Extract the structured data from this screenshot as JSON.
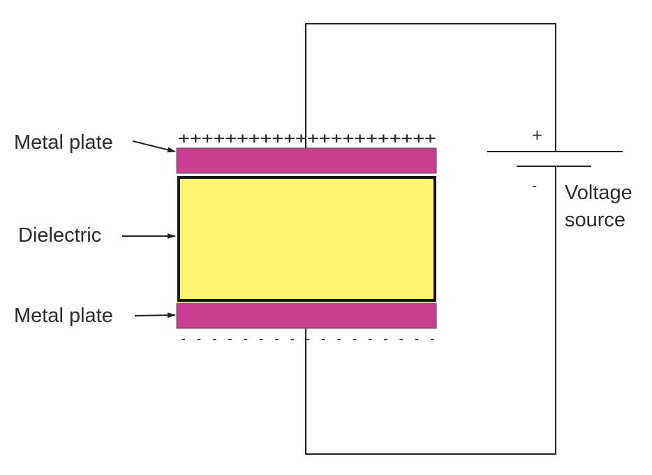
{
  "labels": {
    "top_plate": "Metal plate",
    "dielectric": "Dielectric",
    "bottom_plate": "Metal plate",
    "source_line1": "Voltage",
    "source_line2": "source"
  },
  "terminals": {
    "positive": "+",
    "negative": "-"
  },
  "charges": {
    "top": "++++++++++++++++++++++",
    "bottom": "- - - - - - - - - - - - - - - - -"
  },
  "colors": {
    "plate": "#c83f91",
    "dielectric": "#fdf46f",
    "wire": "#222222",
    "text": "#2b2b2b"
  }
}
